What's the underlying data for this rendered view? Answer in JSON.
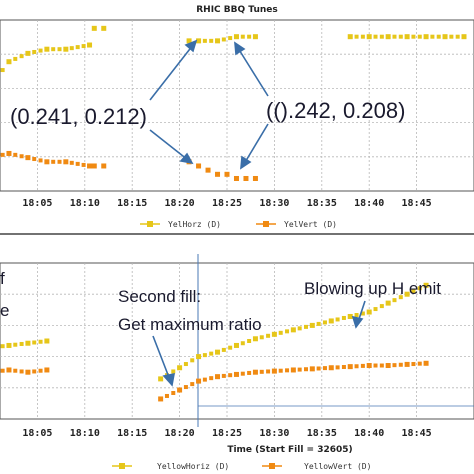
{
  "chart_data": [
    {
      "type": "scatter",
      "title": "RHIC BBQ Tunes",
      "xlabel": "",
      "ylabel": "",
      "x_ticks": [
        "18:05",
        "18:10",
        "18:15",
        "18:20",
        "18:25",
        "18:30",
        "18:35",
        "18:40",
        "18:45"
      ],
      "xlim": [
        "18:00",
        "18:50"
      ],
      "grid": true,
      "legend_position": "bottom",
      "series": [
        {
          "name": "YelHorz (D)",
          "color": "#e6c619",
          "marker": "square",
          "x": [
            "18:00",
            "18:02",
            "18:04",
            "18:06",
            "18:08",
            "18:10.5",
            "18:11",
            "18:12",
            "18:21",
            "18:22",
            "18:24",
            "18:26",
            "18:28",
            "18:38",
            "18:40",
            "18:42",
            "18:44",
            "18:46",
            "18:48",
            "18:50"
          ],
          "y": [
            0.23,
            0.236,
            0.238,
            0.239,
            0.239,
            0.24,
            0.244,
            0.244,
            0.241,
            0.241,
            0.241,
            0.242,
            0.242,
            0.242,
            0.242,
            0.242,
            0.242,
            0.242,
            0.242,
            0.242
          ]
        },
        {
          "name": "YelVert (D)",
          "color": "#f08a12",
          "marker": "square",
          "x": [
            "18:00",
            "18:02",
            "18:04",
            "18:06",
            "18:08",
            "18:10.5",
            "18:11",
            "18:12",
            "18:21",
            "18:22",
            "18:23",
            "18:24",
            "18:25",
            "18:26",
            "18:27",
            "18:28"
          ],
          "y": [
            0.213,
            0.214,
            0.213,
            0.212,
            0.212,
            0.211,
            0.211,
            0.211,
            0.212,
            0.211,
            0.21,
            0.209,
            0.209,
            0.208,
            0.208,
            0.208
          ]
        }
      ]
    },
    {
      "type": "scatter",
      "title": "",
      "xlabel": "Time (Start Fill = 32605)",
      "ylabel": "",
      "x_ticks": [
        "18:05",
        "18:10",
        "18:15",
        "18:20",
        "18:25",
        "18:30",
        "18:35",
        "18:40",
        "18:45"
      ],
      "xlim": [
        "18:00",
        "18:50"
      ],
      "grid": true,
      "legend_position": "bottom",
      "series": [
        {
          "name": "YellowHoriz (D)",
          "color": "#e6c619",
          "marker": "square",
          "x": [
            "18:00",
            "18:02",
            "18:04",
            "18:06",
            "18:18",
            "18:20",
            "18:22",
            "18:24",
            "18:26",
            "18:28",
            "18:30",
            "18:32",
            "18:34",
            "18:36",
            "18:38",
            "18:40",
            "18:42",
            "18:44",
            "18:46"
          ],
          "y": [
            3.2,
            3.3,
            3.4,
            3.5,
            1.8,
            2.3,
            2.8,
            3.0,
            3.3,
            3.6,
            3.8,
            4.0,
            4.2,
            4.4,
            4.6,
            4.8,
            5.2,
            5.6,
            6.0
          ]
        },
        {
          "name": "YellowVert (D)",
          "color": "#f08a12",
          "marker": "square",
          "x": [
            "18:00",
            "18:02",
            "18:04",
            "18:06",
            "18:18",
            "18:20",
            "18:22",
            "18:24",
            "18:26",
            "18:28",
            "18:30",
            "18:32",
            "18:34",
            "18:36",
            "18:38",
            "18:40",
            "18:42",
            "18:44",
            "18:46"
          ],
          "y": [
            2.1,
            2.2,
            2.1,
            2.2,
            0.9,
            1.3,
            1.7,
            1.9,
            2.0,
            2.1,
            2.15,
            2.2,
            2.25,
            2.3,
            2.35,
            2.4,
            2.4,
            2.45,
            2.5
          ]
        }
      ]
    }
  ],
  "annotations": {
    "left_tune": "(0.241, 0.212)",
    "right_tune": "(().242, 0.208)",
    "second_fill_line1": "Second fill:",
    "second_fill_line2": "Get maximum ratio",
    "blowing_up": "Blowing up H emit",
    "left_cut_1": "f",
    "left_cut_2": "e"
  },
  "colors": {
    "yellow": "#e6c619",
    "orange": "#f08a12",
    "arrow": "#3a6ea8",
    "grid": "#b8b8b8"
  }
}
